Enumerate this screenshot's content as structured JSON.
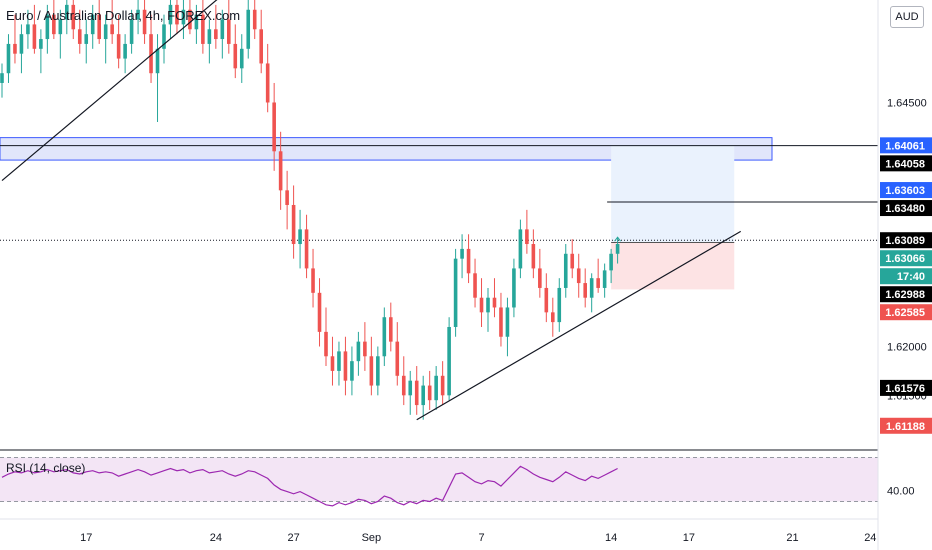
{
  "title": "Euro / Australian Dollar, 4h, FOREX.com",
  "currency_button": "AUD",
  "indicator_label": "RSI (14, close)",
  "colors": {
    "up": "#26a69a",
    "down": "#ef5350",
    "zone_fill": "#e1e6fb",
    "zone_stroke": "#3d5afe",
    "target_fill": "#eaf2fd",
    "stop_fill": "#fde3e4",
    "rsi_line": "#9c27b0",
    "rsi_band": "#f3e5f5"
  },
  "chart_data": {
    "type": "candlestick",
    "symbol": "EURAUD",
    "timeframe": "4h",
    "ylim": [
      1.6095,
      1.6555
    ],
    "x_ticks": [
      {
        "label": "17",
        "index": 13
      },
      {
        "label": "24",
        "index": 33
      },
      {
        "label": "27",
        "index": 45
      },
      {
        "label": "Sep",
        "index": 57
      },
      {
        "label": "7",
        "index": 74
      },
      {
        "label": "14",
        "index": 94
      },
      {
        "label": "17",
        "index": 106
      },
      {
        "label": "21",
        "index": 122
      },
      {
        "label": "24",
        "index": 134
      }
    ],
    "y_ticks": [
      "1.64500",
      "1.62000",
      "1.61500"
    ],
    "price_labels": [
      {
        "text": "1.64061",
        "value": 1.64061,
        "bg": "#2962ff",
        "fg": "#ffffff"
      },
      {
        "text": "1.64058",
        "value": 1.64058,
        "bg": "#000000",
        "fg": "#ffffff"
      },
      {
        "text": "1.63603",
        "value": 1.63603,
        "bg": "#2962ff",
        "fg": "#ffffff"
      },
      {
        "text": "1.63480",
        "value": 1.6348,
        "bg": "#000000",
        "fg": "#ffffff"
      },
      {
        "text": "1.63089",
        "value": 1.63089,
        "bg": "#000000",
        "fg": "#ffffff"
      },
      {
        "text": "1.63066",
        "value": 1.63066,
        "bg": "#26a69a",
        "fg": "#ffffff"
      },
      {
        "text": "17:40",
        "value": 1.62901,
        "bg": "#26a69a",
        "fg": "#ffffff"
      },
      {
        "text": "1.62988",
        "value": 1.62988,
        "bg": "#000000",
        "fg": "#ffffff"
      },
      {
        "text": "1.62585",
        "value": 1.62585,
        "bg": "#ef5350",
        "fg": "#ffffff"
      },
      {
        "text": "1.61576",
        "value": 1.61576,
        "bg": "#000000",
        "fg": "#ffffff"
      },
      {
        "text": "1.61188",
        "value": 1.61188,
        "bg": "#ef5350",
        "fg": "#ffffff"
      }
    ],
    "horizontal_lines": [
      1.64058,
      1.63089
    ],
    "supply_zone": [
      1.6391,
      1.6414
    ],
    "position": {
      "entry": 1.63066,
      "target": 1.64061,
      "stop": 1.62585,
      "start_index": 94,
      "end_index": 113
    },
    "target_marker_level": 1.6348,
    "trendlines": [
      {
        "x1": 0,
        "y1": 1.637,
        "x2": 34,
        "y2": 1.656
      },
      {
        "x1": 64,
        "y1": 1.6125,
        "x2": 114,
        "y2": 1.6318
      }
    ],
    "candles": [
      [
        1.647,
        1.649,
        1.6455,
        1.648
      ],
      [
        1.648,
        1.652,
        1.647,
        1.651
      ],
      [
        1.651,
        1.654,
        1.649,
        1.65
      ],
      [
        1.65,
        1.653,
        1.648,
        1.652
      ],
      [
        1.652,
        1.6545,
        1.6505,
        1.653
      ],
      [
        1.653,
        1.655,
        1.65,
        1.6505
      ],
      [
        1.6505,
        1.6525,
        1.648,
        1.6515
      ],
      [
        1.6515,
        1.655,
        1.65,
        1.654
      ],
      [
        1.654,
        1.656,
        1.6515,
        1.652
      ],
      [
        1.652,
        1.6545,
        1.6495,
        1.6535
      ],
      [
        1.6535,
        1.656,
        1.652,
        1.655
      ],
      [
        1.655,
        1.656,
        1.6515,
        1.6525
      ],
      [
        1.6525,
        1.6545,
        1.65,
        1.651
      ],
      [
        1.651,
        1.6535,
        1.649,
        1.652
      ],
      [
        1.652,
        1.655,
        1.6505,
        1.654
      ],
      [
        1.654,
        1.656,
        1.651,
        1.6515
      ],
      [
        1.6515,
        1.654,
        1.649,
        1.653
      ],
      [
        1.653,
        1.6555,
        1.651,
        1.652
      ],
      [
        1.652,
        1.654,
        1.6485,
        1.6495
      ],
      [
        1.6495,
        1.652,
        1.648,
        1.651
      ],
      [
        1.651,
        1.6545,
        1.65,
        1.6535
      ],
      [
        1.6535,
        1.656,
        1.652,
        1.6545
      ],
      [
        1.6545,
        1.656,
        1.651,
        1.652
      ],
      [
        1.652,
        1.654,
        1.647,
        1.648
      ],
      [
        1.648,
        1.652,
        1.643,
        1.6505
      ],
      [
        1.6505,
        1.654,
        1.649,
        1.653
      ],
      [
        1.653,
        1.656,
        1.6515,
        1.655
      ],
      [
        1.655,
        1.656,
        1.652,
        1.653
      ],
      [
        1.653,
        1.6555,
        1.6515,
        1.6545
      ],
      [
        1.6545,
        1.656,
        1.652,
        1.6525
      ],
      [
        1.6525,
        1.655,
        1.651,
        1.654
      ],
      [
        1.654,
        1.656,
        1.65,
        1.651
      ],
      [
        1.651,
        1.6535,
        1.649,
        1.6525
      ],
      [
        1.6525,
        1.655,
        1.6505,
        1.6515
      ],
      [
        1.6515,
        1.6545,
        1.6495,
        1.6535
      ],
      [
        1.6535,
        1.656,
        1.65,
        1.651
      ],
      [
        1.651,
        1.653,
        1.6475,
        1.6485
      ],
      [
        1.6485,
        1.652,
        1.647,
        1.6505
      ],
      [
        1.6505,
        1.6555,
        1.6495,
        1.6545
      ],
      [
        1.6545,
        1.656,
        1.6515,
        1.6525
      ],
      [
        1.6525,
        1.6545,
        1.648,
        1.649
      ],
      [
        1.649,
        1.651,
        1.644,
        1.645
      ],
      [
        1.645,
        1.647,
        1.638,
        1.64
      ],
      [
        1.64,
        1.642,
        1.634,
        1.636
      ],
      [
        1.636,
        1.638,
        1.632,
        1.6345
      ],
      [
        1.6345,
        1.6365,
        1.629,
        1.6305
      ],
      [
        1.6305,
        1.634,
        1.628,
        1.632
      ],
      [
        1.632,
        1.6335,
        1.627,
        1.628
      ],
      [
        1.628,
        1.63,
        1.624,
        1.6255
      ],
      [
        1.6255,
        1.627,
        1.62,
        1.6215
      ],
      [
        1.6215,
        1.624,
        1.618,
        1.619
      ],
      [
        1.619,
        1.621,
        1.616,
        1.6175
      ],
      [
        1.6175,
        1.6205,
        1.616,
        1.6195
      ],
      [
        1.6195,
        1.621,
        1.615,
        1.6165
      ],
      [
        1.6165,
        1.62,
        1.615,
        1.6185
      ],
      [
        1.6185,
        1.6215,
        1.617,
        1.6205
      ],
      [
        1.6205,
        1.6225,
        1.6175,
        1.619
      ],
      [
        1.619,
        1.621,
        1.615,
        1.616
      ],
      [
        1.616,
        1.62,
        1.615,
        1.619
      ],
      [
        1.619,
        1.624,
        1.618,
        1.623
      ],
      [
        1.623,
        1.6245,
        1.6195,
        1.6205
      ],
      [
        1.6205,
        1.6225,
        1.616,
        1.617
      ],
      [
        1.617,
        1.619,
        1.614,
        1.615
      ],
      [
        1.615,
        1.6175,
        1.613,
        1.6165
      ],
      [
        1.6165,
        1.618,
        1.613,
        1.614
      ],
      [
        1.614,
        1.617,
        1.6125,
        1.616
      ],
      [
        1.616,
        1.6175,
        1.6135,
        1.6145
      ],
      [
        1.6145,
        1.618,
        1.6135,
        1.617
      ],
      [
        1.617,
        1.6185,
        1.614,
        1.615
      ],
      [
        1.615,
        1.623,
        1.6145,
        1.622
      ],
      [
        1.622,
        1.63,
        1.621,
        1.629
      ],
      [
        1.629,
        1.6315,
        1.627,
        1.63
      ],
      [
        1.63,
        1.6315,
        1.6265,
        1.6275
      ],
      [
        1.6275,
        1.629,
        1.624,
        1.625
      ],
      [
        1.625,
        1.627,
        1.622,
        1.6235
      ],
      [
        1.6235,
        1.626,
        1.6215,
        1.625
      ],
      [
        1.625,
        1.627,
        1.623,
        1.624
      ],
      [
        1.624,
        1.6255,
        1.62,
        1.621
      ],
      [
        1.621,
        1.625,
        1.619,
        1.624
      ],
      [
        1.624,
        1.629,
        1.623,
        1.628
      ],
      [
        1.628,
        1.633,
        1.627,
        1.632
      ],
      [
        1.632,
        1.634,
        1.6295,
        1.6305
      ],
      [
        1.6305,
        1.632,
        1.627,
        1.628
      ],
      [
        1.628,
        1.63,
        1.625,
        1.626
      ],
      [
        1.626,
        1.6275,
        1.6225,
        1.6235
      ],
      [
        1.6235,
        1.625,
        1.621,
        1.6225
      ],
      [
        1.6225,
        1.627,
        1.6215,
        1.626
      ],
      [
        1.626,
        1.6305,
        1.625,
        1.6295
      ],
      [
        1.6295,
        1.631,
        1.627,
        1.628
      ],
      [
        1.628,
        1.6295,
        1.625,
        1.6265
      ],
      [
        1.6265,
        1.628,
        1.624,
        1.625
      ],
      [
        1.625,
        1.6275,
        1.6235,
        1.627
      ],
      [
        1.627,
        1.629,
        1.6255,
        1.626
      ],
      [
        1.626,
        1.6285,
        1.625,
        1.6278
      ],
      [
        1.6278,
        1.63,
        1.6265,
        1.6295
      ],
      [
        1.6295,
        1.6312,
        1.6285,
        1.6305
      ]
    ],
    "rsi": {
      "ylim": [
        15,
        75
      ],
      "ticks": [
        {
          "label": "40.00",
          "value": 40
        }
      ],
      "bands": [
        30,
        70
      ],
      "values": [
        52,
        55,
        57,
        56,
        58,
        56,
        57,
        59,
        57,
        58,
        59,
        56,
        55,
        57,
        58,
        56,
        57,
        56,
        53,
        55,
        57,
        59,
        57,
        54,
        56,
        58,
        60,
        58,
        59,
        56,
        58,
        59,
        56,
        57,
        58,
        55,
        53,
        55,
        58,
        57,
        54,
        51,
        45,
        41,
        39,
        37,
        39,
        36,
        33,
        30,
        27,
        26,
        29,
        27,
        29,
        32,
        31,
        28,
        30,
        35,
        33,
        29,
        27,
        30,
        28,
        31,
        30,
        33,
        31,
        43,
        55,
        56,
        52,
        48,
        46,
        49,
        48,
        44,
        50,
        56,
        62,
        59,
        55,
        52,
        50,
        48,
        52,
        57,
        54,
        51,
        49,
        53,
        51,
        54,
        57,
        60
      ]
    }
  }
}
